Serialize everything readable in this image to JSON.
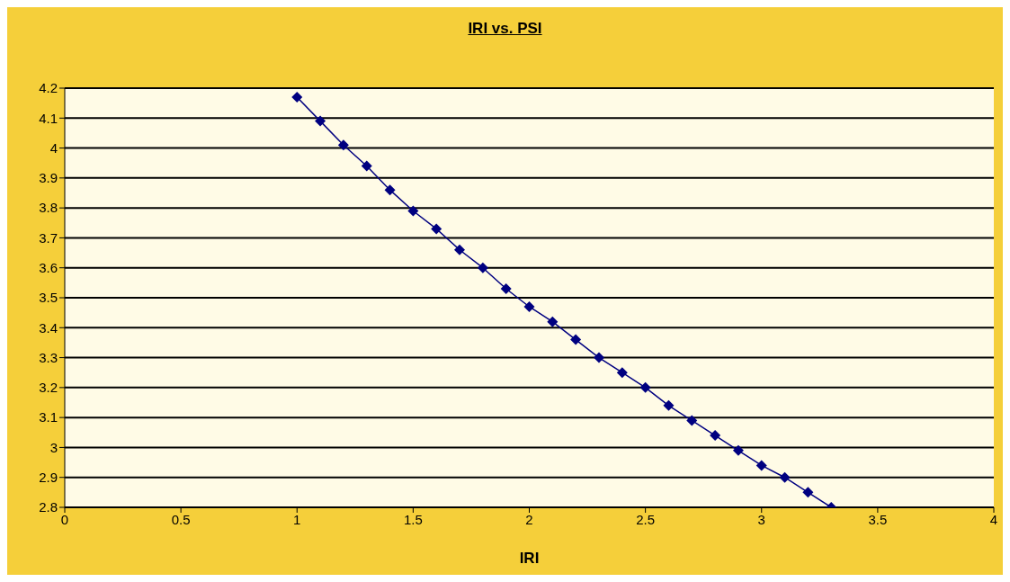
{
  "chart_data": {
    "type": "line",
    "title": "IRI vs. PSI",
    "xlabel": "IRI",
    "x": [
      1,
      1.1,
      1.2,
      1.3,
      1.4,
      1.5,
      1.6,
      1.7,
      1.8,
      1.9,
      2,
      2.1,
      2.2,
      2.3,
      2.4,
      2.5,
      2.6,
      2.7,
      2.8,
      2.9,
      3,
      3.1,
      3.2,
      3.3
    ],
    "series": [
      {
        "color": "#000080",
        "values": [
          4.17,
          4.09,
          4.01,
          3.94,
          3.86,
          3.79,
          3.73,
          3.66,
          3.6,
          3.53,
          3.47,
          3.42,
          3.36,
          3.3,
          3.25,
          3.2,
          3.14,
          3.09,
          3.04,
          2.99,
          2.94,
          2.9,
          2.85,
          2.8
        ]
      }
    ],
    "xlim": [
      0,
      4
    ],
    "xticks": [
      {
        "value": 0,
        "label": "0"
      },
      0.5,
      1,
      1.5,
      2,
      2.5,
      3,
      3.5,
      4
    ],
    "ylim": [
      2.8,
      4.2
    ],
    "yticks": [
      2.8,
      2.9,
      {
        "value": 3,
        "label": "3"
      },
      3.1,
      3.2,
      3.3,
      3.4,
      3.5,
      3.6,
      3.7,
      3.8,
      3.9,
      {
        "value": 4,
        "label": "4"
      },
      4.1,
      4.2
    ],
    "grid": "y",
    "legend": false,
    "marker": "diamond",
    "line_style": "solid"
  }
}
